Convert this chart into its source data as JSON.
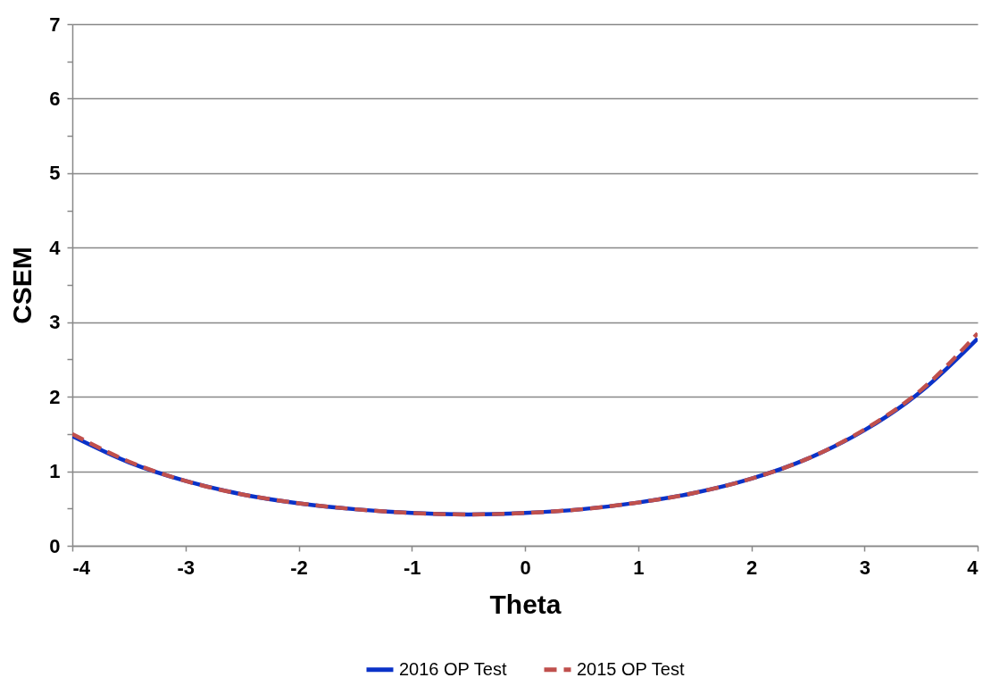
{
  "chart_data": {
    "type": "line",
    "xlabel": "Theta",
    "ylabel": "CSEM",
    "xlim": [
      -4,
      4
    ],
    "xticks": [
      -4,
      -3,
      -2,
      -1,
      0,
      1,
      2,
      3,
      4
    ],
    "ylim": [
      0,
      7
    ],
    "yticks": [
      0,
      {
        "value": 0.5,
        "label": null
      },
      1,
      {
        "value": 1.5,
        "label": null
      },
      2,
      {
        "value": 2.5,
        "label": null
      },
      3,
      {
        "value": 3.5,
        "label": null
      },
      4,
      {
        "value": 4.5,
        "label": null
      },
      5,
      {
        "value": 5.5,
        "label": null
      },
      6,
      {
        "value": 6.5,
        "label": null
      },
      7
    ],
    "grid": "y",
    "legend": "bottom",
    "marker": "none",
    "x": [
      -4,
      -3.5,
      -3,
      -2.5,
      -2,
      -1.5,
      -1,
      -0.5,
      0,
      0.5,
      1,
      1.5,
      2,
      2.5,
      3,
      3.5,
      4
    ],
    "series": [
      {
        "name": "2016 OP Test",
        "color": "#0a32c8",
        "line_style": "solid",
        "values": [
          1.47,
          1.12,
          0.87,
          0.69,
          0.57,
          0.49,
          0.44,
          0.42,
          0.44,
          0.49,
          0.58,
          0.71,
          0.9,
          1.17,
          1.55,
          2.07,
          2.78
        ]
      },
      {
        "name": "2015 OP Test",
        "color": "#c0504d",
        "line_style": "dashed",
        "values": [
          1.5,
          1.13,
          0.87,
          0.69,
          0.57,
          0.49,
          0.44,
          0.42,
          0.44,
          0.49,
          0.58,
          0.71,
          0.9,
          1.17,
          1.56,
          2.09,
          2.85
        ]
      }
    ]
  }
}
